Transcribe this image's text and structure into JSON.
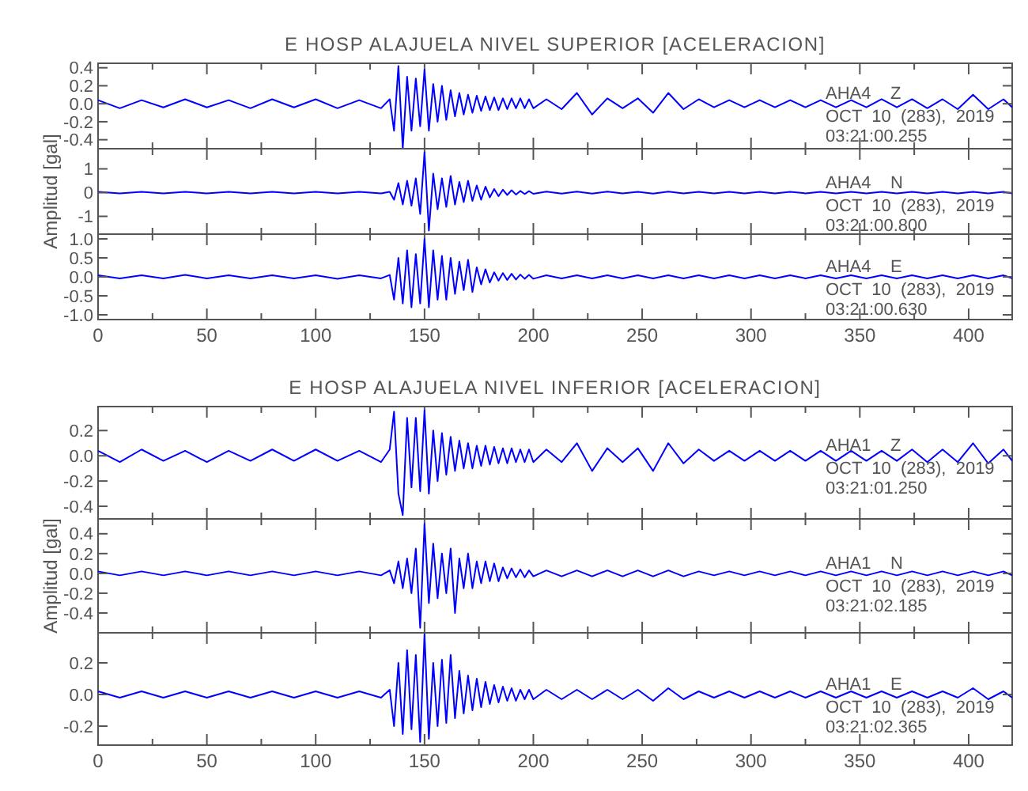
{
  "chart_data": [
    {
      "type": "line",
      "title": "E HOSP ALAJUELA NIVEL SUPERIOR [ACELERACION]",
      "tick_labels": "y",
      "x": [
        0,
        10,
        20,
        30,
        40,
        50,
        60,
        70,
        80,
        90,
        100,
        110,
        120,
        130,
        134,
        136,
        138,
        140,
        142,
        144,
        146,
        148,
        150,
        152,
        154,
        156,
        158,
        160,
        162,
        164,
        166,
        168,
        170,
        172,
        174,
        176,
        178,
        180,
        182,
        184,
        186,
        188,
        190,
        192,
        194,
        196,
        198,
        200,
        206,
        213,
        220,
        227,
        234,
        241,
        248,
        255,
        262,
        269,
        276,
        283,
        290,
        297,
        304,
        311,
        318,
        325,
        332,
        339,
        346,
        353,
        360,
        367,
        374,
        381,
        388,
        395,
        402,
        409,
        416,
        420
      ],
      "series": [
        {
          "color": "#0000ff",
          "values": [
            0.04,
            -0.05,
            0.04,
            -0.04,
            0.05,
            -0.04,
            0.04,
            -0.05,
            0.05,
            -0.04,
            0.05,
            -0.05,
            0.04,
            -0.05,
            0.05,
            -0.3,
            0.42,
            -0.5,
            0.3,
            -0.3,
            0.28,
            -0.25,
            0.38,
            -0.3,
            0.22,
            -0.2,
            0.2,
            -0.18,
            0.15,
            -0.14,
            0.12,
            -0.12,
            0.1,
            -0.1,
            0.09,
            -0.08,
            0.08,
            -0.07,
            0.07,
            -0.07,
            0.06,
            -0.06,
            0.06,
            -0.05,
            0.06,
            -0.05,
            0.05,
            -0.05,
            0.05,
            -0.06,
            0.12,
            -0.12,
            0.06,
            -0.05,
            0.06,
            -0.1,
            0.12,
            -0.06,
            0.05,
            -0.04,
            0.04,
            -0.04,
            0.04,
            -0.04,
            0.04,
            -0.04,
            0.04,
            -0.04,
            0.04,
            -0.04,
            0.05,
            -0.04,
            0.05,
            -0.05,
            0.05,
            -0.06,
            0.1,
            -0.06,
            0.05,
            -0.04
          ]
        }
      ],
      "xlim": [
        0,
        420
      ],
      "ylim": [
        -0.5,
        0.45
      ],
      "xticks": [
        0,
        {
          "value": 25,
          "label": null
        },
        50,
        {
          "value": 75,
          "label": null
        },
        100,
        {
          "value": 125,
          "label": null
        },
        150,
        {
          "value": 175,
          "label": null
        },
        200,
        {
          "value": 225,
          "label": null
        },
        250,
        {
          "value": 275,
          "label": null
        },
        300,
        {
          "value": 325,
          "label": null
        },
        350,
        {
          "value": 375,
          "label": null
        },
        400
      ],
      "yticks": [
        {
          "value": 0.4,
          "label": "0.4"
        },
        {
          "value": 0.2,
          "label": "0.2"
        },
        {
          "value": 0,
          "label": "0.0"
        },
        {
          "value": -0.2,
          "label": "-0.2"
        },
        {
          "value": -0.4,
          "label": "-0.4"
        }
      ],
      "annotations": [
        "AHA4    Z",
        "OCT  10  (283),  2019",
        "03:21:00.255"
      ]
    },
    {
      "type": "line",
      "ylabel": "Amplitud [gal]",
      "tick_labels": "y",
      "x": [
        0,
        10,
        20,
        30,
        40,
        50,
        60,
        70,
        80,
        90,
        100,
        110,
        120,
        130,
        134,
        136,
        138,
        140,
        142,
        144,
        146,
        148,
        150,
        152,
        154,
        156,
        158,
        160,
        162,
        164,
        166,
        168,
        170,
        172,
        174,
        176,
        178,
        180,
        182,
        184,
        186,
        188,
        190,
        192,
        194,
        196,
        198,
        200,
        206,
        213,
        220,
        227,
        234,
        241,
        248,
        255,
        262,
        269,
        276,
        283,
        290,
        297,
        304,
        311,
        318,
        325,
        332,
        339,
        346,
        353,
        360,
        367,
        374,
        381,
        388,
        395,
        402,
        409,
        416,
        420
      ],
      "series": [
        {
          "color": "#0000ff",
          "values": [
            0.03,
            -0.03,
            0.03,
            -0.03,
            0.03,
            -0.03,
            0.03,
            -0.03,
            0.03,
            -0.03,
            0.03,
            -0.03,
            0.03,
            -0.03,
            0.03,
            -0.3,
            0.4,
            -0.5,
            0.5,
            -0.55,
            0.6,
            -0.9,
            1.7,
            -1.6,
            0.8,
            -0.7,
            0.6,
            -0.6,
            0.7,
            -0.5,
            0.45,
            -0.4,
            0.5,
            -0.35,
            0.3,
            -0.3,
            0.25,
            -0.2,
            0.15,
            -0.15,
            0.12,
            -0.1,
            0.1,
            -0.08,
            0.07,
            -0.06,
            0.06,
            -0.05,
            0.04,
            -0.04,
            0.04,
            -0.04,
            0.04,
            -0.03,
            0.03,
            -0.04,
            0.04,
            -0.03,
            0.03,
            -0.03,
            0.03,
            -0.03,
            0.03,
            -0.03,
            0.03,
            -0.03,
            0.03,
            -0.03,
            0.03,
            -0.03,
            0.03,
            -0.03,
            0.03,
            -0.03,
            0.03,
            -0.03,
            0.03,
            -0.03,
            0.03,
            -0.03
          ]
        }
      ],
      "xlim": [
        0,
        420
      ],
      "ylim": [
        -1.75,
        1.85
      ],
      "xticks": [
        0,
        {
          "value": 25,
          "label": null
        },
        50,
        {
          "value": 75,
          "label": null
        },
        100,
        {
          "value": 125,
          "label": null
        },
        150,
        {
          "value": 175,
          "label": null
        },
        200,
        {
          "value": 225,
          "label": null
        },
        250,
        {
          "value": 275,
          "label": null
        },
        300,
        {
          "value": 325,
          "label": null
        },
        350,
        {
          "value": 375,
          "label": null
        },
        400
      ],
      "yticks": [
        1,
        0,
        -1
      ],
      "annotations": [
        "AHA4    N",
        "OCT  10  (283),  2019",
        "03:21:00.800"
      ]
    },
    {
      "type": "line",
      "x": [
        0,
        10,
        20,
        30,
        40,
        50,
        60,
        70,
        80,
        90,
        100,
        110,
        120,
        130,
        134,
        136,
        138,
        140,
        142,
        144,
        146,
        148,
        150,
        152,
        154,
        156,
        158,
        160,
        162,
        164,
        166,
        168,
        170,
        172,
        174,
        176,
        178,
        180,
        182,
        184,
        186,
        188,
        190,
        192,
        194,
        196,
        198,
        200,
        206,
        213,
        220,
        227,
        234,
        241,
        248,
        255,
        262,
        269,
        276,
        283,
        290,
        297,
        304,
        311,
        318,
        325,
        332,
        339,
        346,
        353,
        360,
        367,
        374,
        381,
        388,
        395,
        402,
        409,
        416,
        420
      ],
      "series": [
        {
          "color": "#0000ff",
          "values": [
            0.04,
            -0.04,
            0.04,
            -0.04,
            0.05,
            -0.04,
            0.04,
            -0.04,
            0.04,
            -0.04,
            0.04,
            -0.05,
            0.04,
            -0.04,
            0.05,
            -0.6,
            0.5,
            -0.7,
            0.7,
            -0.8,
            0.6,
            -0.7,
            1.0,
            -0.8,
            0.7,
            -0.6,
            0.55,
            -0.6,
            0.5,
            -0.45,
            0.4,
            -0.35,
            0.45,
            -0.4,
            0.25,
            -0.2,
            0.2,
            -0.15,
            0.12,
            -0.1,
            0.1,
            -0.08,
            0.08,
            -0.07,
            0.06,
            -0.05,
            0.05,
            -0.05,
            0.04,
            -0.04,
            0.04,
            -0.04,
            0.04,
            -0.04,
            0.04,
            -0.04,
            0.04,
            -0.04,
            0.04,
            -0.04,
            0.04,
            -0.04,
            0.04,
            -0.04,
            0.04,
            -0.04,
            0.04,
            -0.04,
            0.04,
            -0.04,
            0.04,
            -0.04,
            0.04,
            -0.04,
            0.04,
            -0.04,
            0.04,
            -0.04,
            0.04,
            -0.04
          ]
        }
      ],
      "xlim": [
        0,
        420
      ],
      "ylim": [
        -1.125,
        1.125
      ],
      "xticks": [
        0,
        {
          "value": 25,
          "label": null
        },
        50,
        {
          "value": 75,
          "label": null
        },
        100,
        {
          "value": 125,
          "label": null
        },
        150,
        {
          "value": 175,
          "label": null
        },
        200,
        {
          "value": 225,
          "label": null
        },
        250,
        {
          "value": 275,
          "label": null
        },
        300,
        {
          "value": 325,
          "label": null
        },
        350,
        {
          "value": 375,
          "label": null
        },
        400
      ],
      "yticks": [
        {
          "value": 1,
          "label": "1.0"
        },
        {
          "value": 0.5,
          "label": "0.5"
        },
        {
          "value": 0,
          "label": "0.0"
        },
        {
          "value": -0.5,
          "label": "-0.5"
        },
        {
          "value": -1,
          "label": "-1.0"
        }
      ],
      "annotations": [
        "AHA4    E",
        "OCT  10  (283),  2019",
        "03:21:00.630"
      ]
    },
    {
      "type": "line",
      "title": "E HOSP ALAJUELA NIVEL INFERIOR [ACELERACION]",
      "tick_labels": "y",
      "x": [
        0,
        10,
        20,
        30,
        40,
        50,
        60,
        70,
        80,
        90,
        100,
        110,
        120,
        130,
        134,
        136,
        138,
        140,
        142,
        144,
        146,
        148,
        150,
        152,
        154,
        156,
        158,
        160,
        162,
        164,
        166,
        168,
        170,
        172,
        174,
        176,
        178,
        180,
        182,
        184,
        186,
        188,
        190,
        192,
        194,
        196,
        198,
        200,
        206,
        213,
        220,
        227,
        234,
        241,
        248,
        255,
        262,
        269,
        276,
        283,
        290,
        297,
        304,
        311,
        318,
        325,
        332,
        339,
        346,
        353,
        360,
        367,
        374,
        381,
        388,
        395,
        402,
        409,
        416,
        420
      ],
      "series": [
        {
          "color": "#0000ff",
          "values": [
            0.04,
            -0.05,
            0.05,
            -0.04,
            0.04,
            -0.05,
            0.04,
            -0.04,
            0.05,
            -0.04,
            0.05,
            -0.04,
            0.04,
            -0.05,
            0.05,
            0.35,
            -0.3,
            -0.47,
            0.3,
            -0.25,
            0.3,
            -0.28,
            0.36,
            -0.3,
            0.2,
            -0.2,
            0.18,
            -0.15,
            0.15,
            -0.12,
            0.12,
            -0.1,
            0.1,
            -0.1,
            0.08,
            -0.08,
            0.08,
            -0.07,
            0.07,
            -0.06,
            0.06,
            -0.06,
            0.06,
            -0.05,
            0.05,
            -0.05,
            0.05,
            -0.05,
            0.05,
            -0.05,
            0.1,
            -0.12,
            0.06,
            -0.05,
            0.06,
            -0.12,
            0.1,
            -0.06,
            0.05,
            -0.04,
            0.04,
            -0.04,
            0.04,
            -0.04,
            0.04,
            -0.04,
            0.04,
            -0.04,
            0.04,
            -0.04,
            0.04,
            -0.04,
            0.05,
            -0.05,
            0.05,
            -0.05,
            0.1,
            -0.06,
            0.05,
            -0.04
          ]
        }
      ],
      "xlim": [
        0,
        420
      ],
      "ylim": [
        -0.5,
        0.39
      ],
      "xticks": [
        0,
        {
          "value": 25,
          "label": null
        },
        50,
        {
          "value": 75,
          "label": null
        },
        100,
        {
          "value": 125,
          "label": null
        },
        150,
        {
          "value": 175,
          "label": null
        },
        200,
        {
          "value": 225,
          "label": null
        },
        250,
        {
          "value": 275,
          "label": null
        },
        300,
        {
          "value": 325,
          "label": null
        },
        350,
        {
          "value": 375,
          "label": null
        },
        400
      ],
      "yticks": [
        {
          "value": 0.2,
          "label": "0.2"
        },
        {
          "value": 0,
          "label": "0.0"
        },
        {
          "value": -0.2,
          "label": "-0.2"
        },
        {
          "value": -0.4,
          "label": "-0.4"
        }
      ],
      "annotations": [
        "AHA1    Z",
        "OCT  10  (283),  2019",
        "03:21:01.250"
      ]
    },
    {
      "type": "line",
      "ylabel": "Amplitud [gal]",
      "tick_labels": "y",
      "x": [
        0,
        10,
        20,
        30,
        40,
        50,
        60,
        70,
        80,
        90,
        100,
        110,
        120,
        130,
        134,
        136,
        138,
        140,
        142,
        144,
        146,
        148,
        150,
        152,
        154,
        156,
        158,
        160,
        162,
        164,
        166,
        168,
        170,
        172,
        174,
        176,
        178,
        180,
        182,
        184,
        186,
        188,
        190,
        192,
        194,
        196,
        198,
        200,
        206,
        213,
        220,
        227,
        234,
        241,
        248,
        255,
        262,
        269,
        276,
        283,
        290,
        297,
        304,
        311,
        318,
        325,
        332,
        339,
        346,
        353,
        360,
        367,
        374,
        381,
        388,
        395,
        402,
        409,
        416,
        420
      ],
      "series": [
        {
          "color": "#0000ff",
          "values": [
            0.02,
            -0.02,
            0.02,
            -0.02,
            0.02,
            -0.02,
            0.02,
            -0.02,
            0.02,
            -0.02,
            0.02,
            -0.02,
            0.02,
            -0.02,
            0.03,
            -0.1,
            0.12,
            -0.15,
            0.15,
            -0.2,
            0.25,
            -0.55,
            0.5,
            -0.3,
            0.3,
            -0.25,
            0.2,
            -0.2,
            0.25,
            -0.4,
            0.15,
            -0.15,
            0.2,
            -0.15,
            0.12,
            -0.1,
            0.12,
            -0.08,
            0.1,
            -0.08,
            0.06,
            -0.05,
            0.05,
            -0.04,
            0.04,
            -0.04,
            0.03,
            -0.03,
            0.03,
            -0.03,
            0.03,
            -0.03,
            0.03,
            -0.03,
            0.03,
            -0.03,
            0.03,
            -0.03,
            0.02,
            -0.02,
            0.02,
            -0.02,
            0.02,
            -0.02,
            0.02,
            -0.02,
            0.02,
            -0.02,
            0.02,
            -0.02,
            0.02,
            -0.02,
            0.02,
            -0.02,
            0.02,
            -0.02,
            0.02,
            -0.02,
            0.02,
            -0.02
          ]
        }
      ],
      "xlim": [
        0,
        420
      ],
      "ylim": [
        -0.6,
        0.55
      ],
      "xticks": [
        0,
        {
          "value": 25,
          "label": null
        },
        50,
        {
          "value": 75,
          "label": null
        },
        100,
        {
          "value": 125,
          "label": null
        },
        150,
        {
          "value": 175,
          "label": null
        },
        200,
        {
          "value": 225,
          "label": null
        },
        250,
        {
          "value": 275,
          "label": null
        },
        300,
        {
          "value": 325,
          "label": null
        },
        350,
        {
          "value": 375,
          "label": null
        },
        400
      ],
      "yticks": [
        {
          "value": 0.4,
          "label": "0.4"
        },
        {
          "value": 0.2,
          "label": "0.2"
        },
        {
          "value": 0,
          "label": "0.0"
        },
        {
          "value": -0.2,
          "label": "-0.2"
        },
        {
          "value": -0.4,
          "label": "-0.4"
        }
      ],
      "annotations": [
        "AHA1    N",
        "OCT  10  (283),  2019",
        "03:21:02.185"
      ]
    },
    {
      "type": "line",
      "x": [
        0,
        10,
        20,
        30,
        40,
        50,
        60,
        70,
        80,
        90,
        100,
        110,
        120,
        130,
        134,
        136,
        138,
        140,
        142,
        144,
        146,
        148,
        150,
        152,
        154,
        156,
        158,
        160,
        162,
        164,
        166,
        168,
        170,
        172,
        174,
        176,
        178,
        180,
        182,
        184,
        186,
        188,
        190,
        192,
        194,
        196,
        198,
        200,
        206,
        213,
        220,
        227,
        234,
        241,
        248,
        255,
        262,
        269,
        276,
        283,
        290,
        297,
        304,
        311,
        318,
        325,
        332,
        339,
        346,
        353,
        360,
        367,
        374,
        381,
        388,
        395,
        402,
        409,
        416,
        420
      ],
      "series": [
        {
          "color": "#0000ff",
          "values": [
            0.02,
            -0.02,
            0.02,
            -0.02,
            0.02,
            -0.02,
            0.02,
            -0.02,
            0.02,
            -0.02,
            0.02,
            -0.02,
            0.02,
            -0.02,
            0.03,
            -0.2,
            0.2,
            -0.25,
            0.28,
            -0.22,
            0.25,
            -0.3,
            0.38,
            -0.28,
            0.2,
            -0.2,
            0.22,
            -0.18,
            0.25,
            -0.15,
            0.15,
            -0.12,
            0.12,
            -0.1,
            0.1,
            -0.08,
            0.08,
            -0.06,
            0.06,
            -0.05,
            0.05,
            -0.04,
            0.04,
            -0.04,
            0.03,
            -0.03,
            0.03,
            -0.03,
            0.03,
            -0.03,
            0.03,
            -0.03,
            0.03,
            -0.03,
            0.03,
            -0.04,
            0.04,
            -0.03,
            0.02,
            -0.02,
            0.02,
            -0.02,
            0.02,
            -0.02,
            0.02,
            -0.02,
            0.02,
            -0.02,
            0.02,
            -0.02,
            0.02,
            -0.02,
            0.02,
            -0.02,
            0.02,
            -0.02,
            0.04,
            -0.03,
            0.02,
            -0.02
          ]
        }
      ],
      "xlim": [
        0,
        420
      ],
      "ylim": [
        -0.32,
        0.39
      ],
      "xticks": [
        0,
        {
          "value": 25,
          "label": null
        },
        50,
        {
          "value": 75,
          "label": null
        },
        100,
        {
          "value": 125,
          "label": null
        },
        150,
        {
          "value": 175,
          "label": null
        },
        200,
        {
          "value": 225,
          "label": null
        },
        250,
        {
          "value": 275,
          "label": null
        },
        300,
        {
          "value": 325,
          "label": null
        },
        350,
        {
          "value": 375,
          "label": null
        },
        400
      ],
      "yticks": [
        {
          "value": 0.2,
          "label": "0.2"
        },
        {
          "value": 0,
          "label": "0.0"
        },
        {
          "value": -0.2,
          "label": "-0.2"
        }
      ],
      "annotations": [
        "AHA1    E",
        "OCT  10  (283),  2019",
        "03:21:02.365"
      ]
    }
  ]
}
